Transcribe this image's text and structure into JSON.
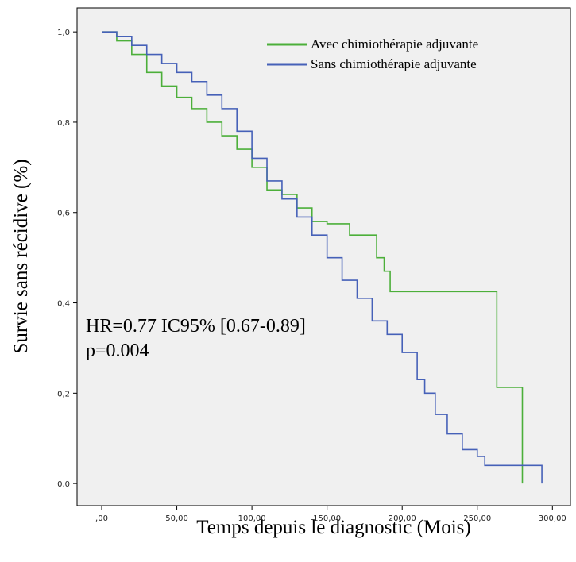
{
  "chart_data": {
    "type": "line",
    "step": "post",
    "x_label": "Temps depuis le diagnostic (Mois)",
    "y_label": "Survie sans récidive (%)",
    "annotations": [
      "HR=0.77 IC95% [0.67-0.89]",
      "p=0.004"
    ],
    "legend": "top-right",
    "xlim": [
      -16.4,
      312
    ],
    "ylim": [
      -0.049,
      1.053
    ],
    "xticks": [
      {
        "value": 0,
        "label": ",00"
      },
      {
        "value": 50,
        "label": "50,00"
      },
      {
        "value": 100,
        "label": "100,00"
      },
      {
        "value": 150,
        "label": "150,00"
      },
      {
        "value": 200,
        "label": "200,00"
      },
      {
        "value": 250,
        "label": "250,00"
      },
      {
        "value": 300,
        "label": "300,00"
      }
    ],
    "yticks": [
      {
        "value": 0,
        "label": "0,0"
      },
      {
        "value": 0.2,
        "label": "0,2"
      },
      {
        "value": 0.4,
        "label": "0,4"
      },
      {
        "value": 0.6,
        "label": "0,6"
      },
      {
        "value": 0.8,
        "label": "0,8"
      },
      {
        "value": 1,
        "label": "1,0"
      }
    ],
    "series": [
      {
        "name": "Avec chimiothérapie adjuvante",
        "color": "#4caf3a",
        "x": [
          0,
          10,
          20,
          30,
          40,
          50,
          60,
          70,
          80,
          90,
          100,
          110,
          120,
          130,
          140,
          150,
          160,
          165,
          180,
          183,
          188,
          192,
          263,
          280
        ],
        "values": [
          1.0,
          0.98,
          0.95,
          0.91,
          0.88,
          0.855,
          0.83,
          0.8,
          0.77,
          0.74,
          0.7,
          0.65,
          0.64,
          0.61,
          0.58,
          0.575,
          0.575,
          0.55,
          0.55,
          0.5,
          0.47,
          0.425,
          0.213,
          0.0
        ]
      },
      {
        "name": "Sans chimiothérapie adjuvante",
        "color": "#4661b8",
        "x": [
          0,
          10,
          20,
          30,
          40,
          50,
          60,
          70,
          80,
          90,
          100,
          110,
          120,
          130,
          140,
          150,
          160,
          170,
          180,
          190,
          200,
          210,
          215,
          222,
          230,
          240,
          250,
          255,
          290,
          293
        ],
        "values": [
          1.0,
          0.99,
          0.97,
          0.95,
          0.93,
          0.91,
          0.89,
          0.86,
          0.83,
          0.78,
          0.72,
          0.67,
          0.63,
          0.59,
          0.55,
          0.5,
          0.45,
          0.41,
          0.36,
          0.33,
          0.29,
          0.23,
          0.2,
          0.153,
          0.11,
          0.075,
          0.06,
          0.04,
          0.04,
          0.0
        ]
      }
    ]
  }
}
